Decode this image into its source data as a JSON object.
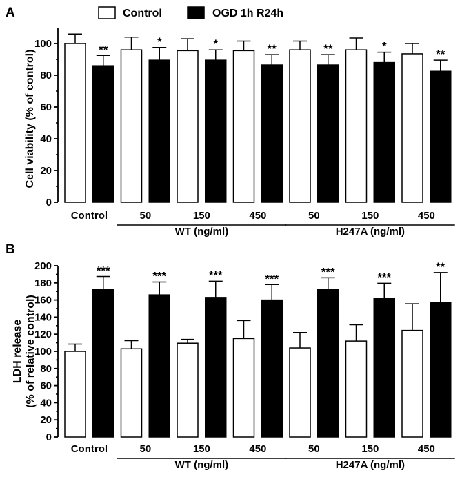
{
  "legend": {
    "items": [
      {
        "label": "Control",
        "fill": "#ffffff"
      },
      {
        "label": "OGD 1h R24h",
        "fill": "#000000"
      }
    ]
  },
  "chart_data": [
    {
      "panel": "A",
      "type": "bar",
      "ylabel": "Cell viability (% of control)",
      "ylim": [
        0,
        110
      ],
      "yticks": [
        0,
        20,
        40,
        60,
        80,
        100
      ],
      "categories": [
        "Control",
        "50",
        "150",
        "450",
        "50",
        "150",
        "450"
      ],
      "group_labels": [
        {
          "label": "WT (ng/ml)",
          "from": 1,
          "to": 3
        },
        {
          "label": "H247A (ng/ml)",
          "from": 4,
          "to": 6
        }
      ],
      "series": [
        {
          "name": "Control",
          "values": [
            100,
            96,
            95.5,
            95.5,
            96,
            96,
            93.5
          ],
          "errors": [
            6,
            8,
            7.5,
            6,
            5.5,
            7.5,
            6.5
          ]
        },
        {
          "name": "OGD 1h R24h",
          "values": [
            86,
            89.5,
            89.5,
            86.5,
            86.5,
            88,
            82.5
          ],
          "errors": [
            6.5,
            8,
            6.5,
            6.5,
            6.5,
            6.5,
            7
          ]
        }
      ],
      "annotations": [
        "**",
        "*",
        "*",
        "**",
        "**",
        "*",
        "**"
      ]
    },
    {
      "panel": "B",
      "type": "bar",
      "ylabel_lines": [
        "LDH release",
        "(% of relative control)"
      ],
      "ylim": [
        0,
        200
      ],
      "yticks": [
        0,
        20,
        40,
        60,
        80,
        100,
        120,
        140,
        160,
        180,
        200
      ],
      "categories": [
        "Control",
        "50",
        "150",
        "450",
        "50",
        "150",
        "450"
      ],
      "group_labels": [
        {
          "label": "WT (ng/ml)",
          "from": 1,
          "to": 3
        },
        {
          "label": "H247A (ng/ml)",
          "from": 4,
          "to": 6
        }
      ],
      "series": [
        {
          "name": "Control",
          "values": [
            100,
            103,
            109.5,
            115,
            104,
            112,
            124.5
          ],
          "errors": [
            8.5,
            9.5,
            4.5,
            21,
            18,
            19,
            31
          ]
        },
        {
          "name": "OGD 1h R24h",
          "values": [
            172.5,
            166,
            163,
            160,
            172.5,
            161.5,
            157
          ],
          "errors": [
            15,
            15,
            19,
            18,
            13.5,
            18,
            35
          ]
        }
      ],
      "annotations": [
        "***",
        "***",
        "***",
        "***",
        "***",
        "***",
        "**"
      ]
    }
  ]
}
